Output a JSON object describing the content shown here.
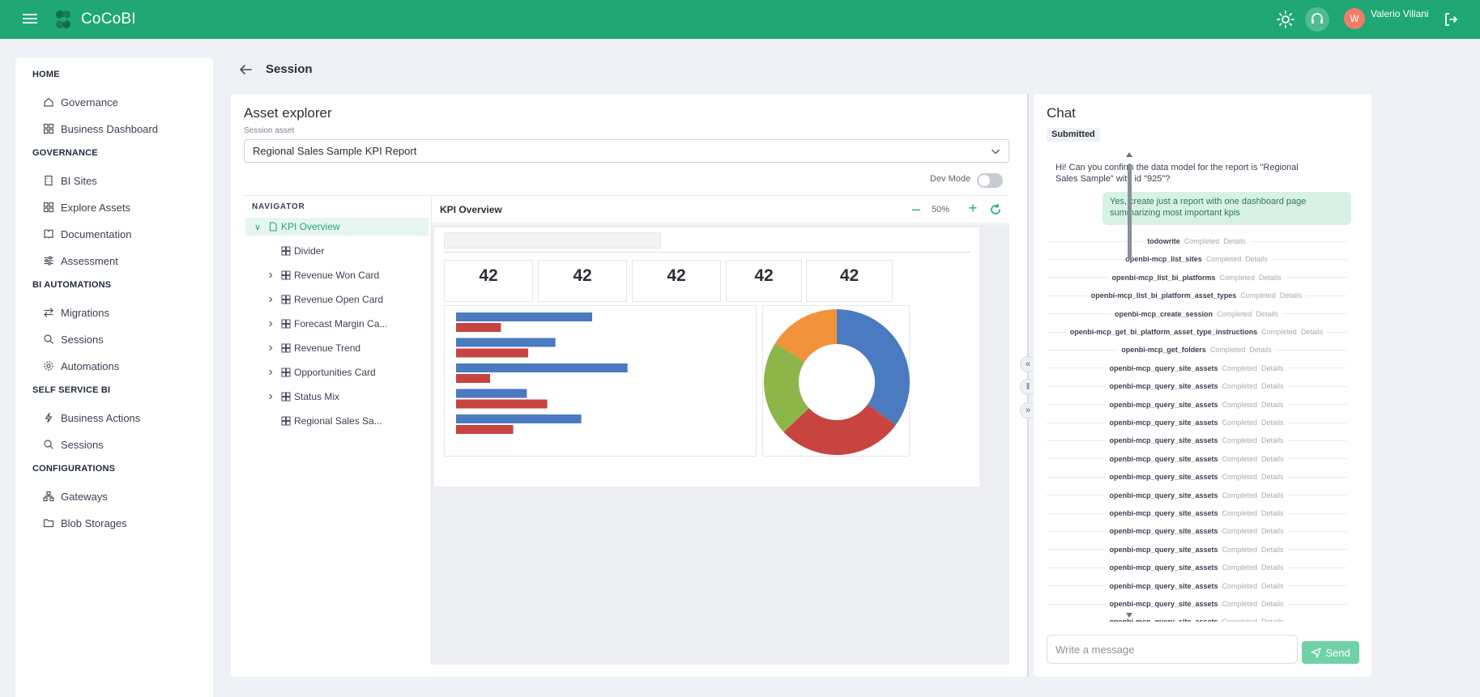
{
  "app": {
    "name": "CoCoBI",
    "user_name": "Valerio Villani",
    "user_initial": "W"
  },
  "colors": {
    "brand": "#1fa874",
    "accent_light": "#e6f6ef",
    "bar_blue": "#4a7bc0",
    "bar_red": "#c74440",
    "donut": [
      "#4a7bc0",
      "#c74440",
      "#8db64a",
      "#f2923a"
    ]
  },
  "sidebar": {
    "sections": [
      {
        "title": "HOME",
        "items": [
          {
            "label": "Governance",
            "icon": "home-icon"
          },
          {
            "label": "Business Dashboard",
            "icon": "dashboard-icon"
          }
        ]
      },
      {
        "title": "GOVERNANCE",
        "items": [
          {
            "label": "BI Sites",
            "icon": "building-icon"
          },
          {
            "label": "Explore Assets",
            "icon": "grid-icon"
          },
          {
            "label": "Documentation",
            "icon": "book-icon"
          },
          {
            "label": "Assessment",
            "icon": "sliders-icon"
          }
        ]
      },
      {
        "title": "BI AUTOMATIONS",
        "items": [
          {
            "label": "Migrations",
            "icon": "swap-icon"
          },
          {
            "label": "Sessions",
            "icon": "search-icon"
          },
          {
            "label": "Automations",
            "icon": "gear-icon"
          }
        ]
      },
      {
        "title": "SELF SERVICE BI",
        "items": [
          {
            "label": "Business Actions",
            "icon": "bolt-icon"
          },
          {
            "label": "Sessions",
            "icon": "search-icon"
          }
        ]
      },
      {
        "title": "CONFIGURATIONS",
        "items": [
          {
            "label": "Gateways",
            "icon": "network-icon"
          },
          {
            "label": "Blob Storages",
            "icon": "folder-icon"
          }
        ]
      }
    ]
  },
  "header": {
    "title": "Session"
  },
  "explorer": {
    "title": "Asset explorer",
    "asset_label": "Session asset",
    "asset_value": "Regional Sales Sample KPI Report",
    "dev_mode_label": "Dev Mode",
    "dev_mode_on": false,
    "navigator_title": "NAVIGATOR",
    "tree": [
      {
        "label": "KPI Overview",
        "expanded": true,
        "active": true
      },
      {
        "label": "Divider"
      },
      {
        "label": "Revenue Won Card",
        "collapsible": true
      },
      {
        "label": "Revenue Open Card",
        "collapsible": true
      },
      {
        "label": "Forecast Margin Ca...",
        "collapsible": true
      },
      {
        "label": "Revenue Trend",
        "collapsible": true
      },
      {
        "label": "Opportunities Card",
        "collapsible": true
      },
      {
        "label": "Status Mix",
        "collapsible": true
      },
      {
        "label": "Regional Sales Sa..."
      }
    ],
    "canvas_title": "KPI Overview",
    "zoom": "50%",
    "kpis": [
      "42",
      "42",
      "42",
      "42",
      "42"
    ],
    "chart_data": [
      {
        "type": "bar",
        "series": [
          {
            "name": "",
            "values": [
              100,
              73,
              126,
              52,
              92
            ]
          },
          {
            "name": "",
            "values": [
              33,
              53,
              25,
              67,
              42
            ]
          }
        ]
      },
      {
        "type": "pie",
        "values": [
          35,
          28,
          21,
          16
        ]
      }
    ]
  },
  "chat": {
    "title": "Chat",
    "status": "Submitted",
    "ai_message": "Hi! Can you confirm the data model for the report is \"Regional Sales Sample\" with id \"925\"?",
    "user_message": "Yes, create just a report with one dashboard page summarizing most important kpis",
    "status_word": "Completed",
    "details_word": "Details",
    "tools": [
      "todowrite",
      "openbi-mcp_list_sites",
      "openbi-mcp_list_bi_platforms",
      "openbi-mcp_list_bi_platform_asset_types",
      "openbi-mcp_create_session",
      "openbi-mcp_get_bi_platform_asset_type_instructions",
      "openbi-mcp_get_folders",
      "openbi-mcp_query_site_assets",
      "openbi-mcp_query_site_assets",
      "openbi-mcp_query_site_assets",
      "openbi-mcp_query_site_assets",
      "openbi-mcp_query_site_assets",
      "openbi-mcp_query_site_assets",
      "openbi-mcp_query_site_assets",
      "openbi-mcp_query_site_assets",
      "openbi-mcp_query_site_assets",
      "openbi-mcp_query_site_assets",
      "openbi-mcp_query_site_assets",
      "openbi-mcp_query_site_assets",
      "openbi-mcp_query_site_assets",
      "openbi-mcp_query_site_assets",
      "openbi-mcp_query_site_assets"
    ],
    "input_placeholder": "Write a message",
    "send_label": "Send"
  }
}
